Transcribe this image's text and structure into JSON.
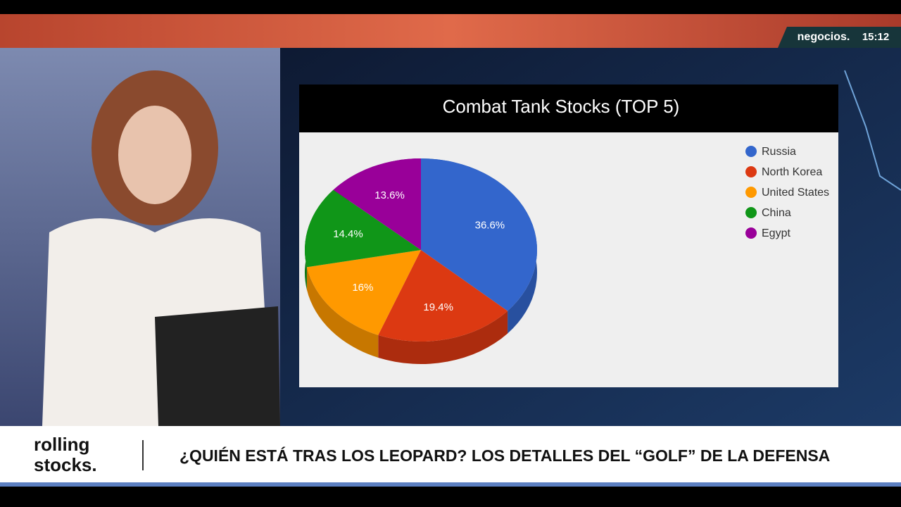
{
  "chart_data": {
    "type": "pie",
    "title": "Combat Tank Stocks (TOP 5)",
    "categories": [
      "Russia",
      "North Korea",
      "United States",
      "China",
      "Egypt"
    ],
    "values": [
      36.6,
      19.4,
      16,
      14.4,
      13.6
    ],
    "value_labels": [
      "36.6%",
      "19.4%",
      "16%",
      "14.4%",
      "13.6%"
    ],
    "colors": [
      "#3366cc",
      "#dc3912",
      "#ff9900",
      "#109618",
      "#990099"
    ],
    "legend": "right"
  },
  "broadcast": {
    "channel": "negocios.",
    "time": "15:12",
    "program": [
      "rolling",
      "stocks."
    ],
    "headline": "¿QUIÉN ESTÁ TRAS LOS LEOPARD? LOS DETALLES DEL “GOLF” DE LA DEFENSA"
  }
}
